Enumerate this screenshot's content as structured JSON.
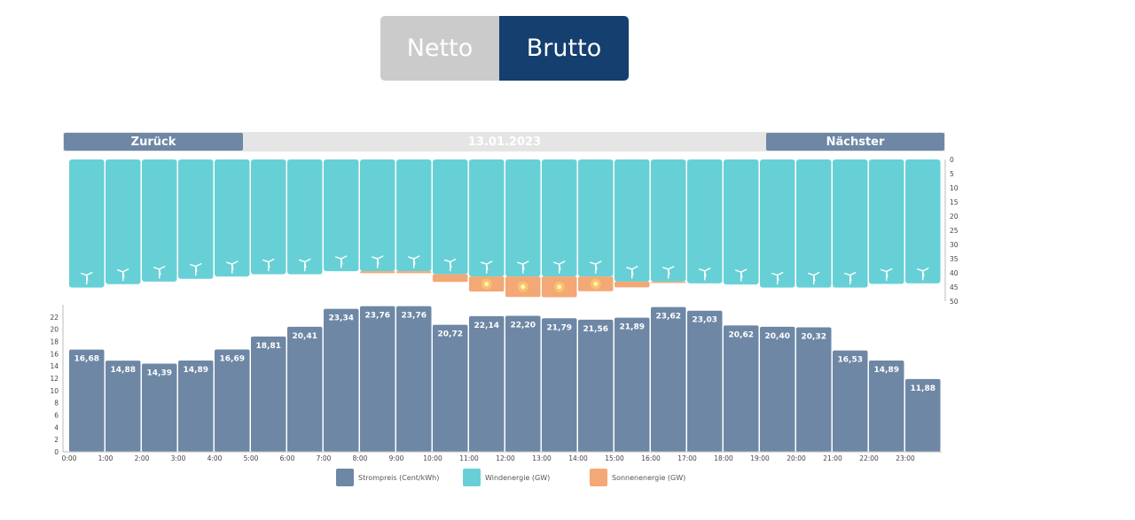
{
  "toggle": {
    "netto_label": "Netto",
    "brutto_label": "Brutto",
    "active": "Brutto"
  },
  "nav": {
    "back_label": "Zurück",
    "date": "13.01.2023",
    "next_label": "Nächster"
  },
  "legend": [
    {
      "label": "Strompreis (Cent/kWh)",
      "color": "#6e87a5"
    },
    {
      "label": "Windenergie (GW)",
      "color": "#67d0d6"
    },
    {
      "label": "Sonnenenergie (GW)",
      "color": "#f3a875"
    }
  ],
  "chart_data": {
    "type": "bar",
    "categories": [
      "0:00",
      "1:00",
      "2:00",
      "3:00",
      "4:00",
      "5:00",
      "6:00",
      "7:00",
      "8:00",
      "9:00",
      "10:00",
      "11:00",
      "12:00",
      "13:00",
      "14:00",
      "15:00",
      "16:00",
      "17:00",
      "18:00",
      "19:00",
      "20:00",
      "21:00",
      "22:00",
      "23:00"
    ],
    "series": [
      {
        "name": "Strompreis (Cent/kWh)",
        "color": "#6e87a5",
        "values": [
          16.68,
          14.88,
          14.39,
          14.89,
          16.69,
          18.81,
          20.41,
          23.34,
          23.76,
          23.76,
          20.72,
          22.14,
          22.2,
          21.79,
          21.56,
          21.89,
          23.62,
          23.03,
          20.62,
          20.4,
          20.32,
          16.53,
          14.89,
          11.88
        ],
        "labels": [
          "16,68",
          "14,88",
          "14,39",
          "14,89",
          "16,69",
          "18,81",
          "20,41",
          "23,34",
          "23,76",
          "23,76",
          "20,72",
          "22,14",
          "22,20",
          "21,79",
          "21,56",
          "21,89",
          "23,62",
          "23,03",
          "20,62",
          "20,40",
          "20,32",
          "16,53",
          "14,89",
          "11,88"
        ]
      },
      {
        "name": "Windenergie (GW)",
        "color": "#67d0d6",
        "values": [
          45.2,
          44,
          43.1,
          42.1,
          41.3,
          40.5,
          40.5,
          39.4,
          39.4,
          39.4,
          40.5,
          41.3,
          41.3,
          41.3,
          41.3,
          43.1,
          43.1,
          43.7,
          44.1,
          45.2,
          45.2,
          45.2,
          43.9,
          43.7
        ]
      },
      {
        "name": "Sonnenenergie (GW)",
        "color": "#f3a875",
        "values": [
          0,
          0,
          0,
          0,
          0,
          0,
          0,
          0,
          0.7,
          0.7,
          2.7,
          5.3,
          7.2,
          7.3,
          5.2,
          2,
          0.4,
          0,
          0,
          0,
          0,
          0,
          0,
          0
        ]
      }
    ],
    "price_axis": {
      "min": 0,
      "max": 24,
      "ticks": [
        0,
        2,
        4,
        6,
        8,
        10,
        12,
        14,
        16,
        18,
        20,
        22
      ]
    },
    "energy_axis": {
      "min": 0,
      "max": 50,
      "ticks": [
        0,
        5,
        10,
        15,
        20,
        25,
        30,
        35,
        40,
        45,
        50
      ],
      "inverted": true
    }
  }
}
